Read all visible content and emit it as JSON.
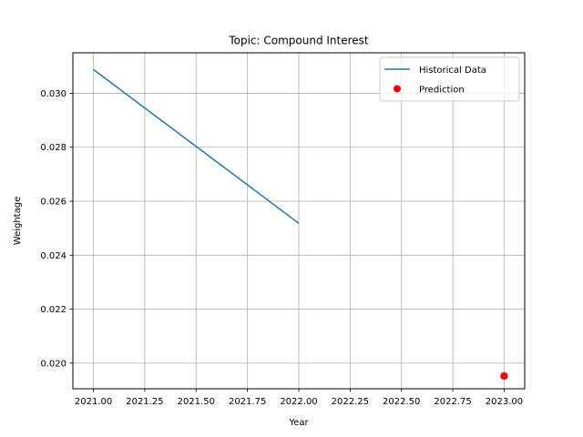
{
  "chart_data": {
    "type": "line",
    "title": "Topic: Compound Interest",
    "xlabel": "Year",
    "ylabel": "Weightage",
    "xlim": [
      2020.9,
      2023.1
    ],
    "ylim": [
      0.01905,
      0.0315
    ],
    "xticks": [
      2021.0,
      2021.25,
      2021.5,
      2021.75,
      2022.0,
      2022.25,
      2022.5,
      2022.75,
      2023.0
    ],
    "xtick_labels": [
      "2021.00",
      "2021.25",
      "2021.50",
      "2021.75",
      "2022.00",
      "2022.25",
      "2022.50",
      "2022.75",
      "2023.00"
    ],
    "yticks": [
      0.02,
      0.022,
      0.024,
      0.026,
      0.028,
      0.03
    ],
    "ytick_labels": [
      "0.020",
      "0.022",
      "0.024",
      "0.026",
      "0.028",
      "0.030"
    ],
    "grid": true,
    "legend_position": "top-right",
    "series": [
      {
        "name": "Historical Data",
        "kind": "line",
        "color": "#1f77b4",
        "x": [
          2021,
          2022
        ],
        "y": [
          0.03088,
          0.02518
        ]
      },
      {
        "name": "Prediction",
        "kind": "scatter",
        "color": "#ff0000",
        "x": [
          2023
        ],
        "y": [
          0.01952
        ]
      }
    ]
  }
}
